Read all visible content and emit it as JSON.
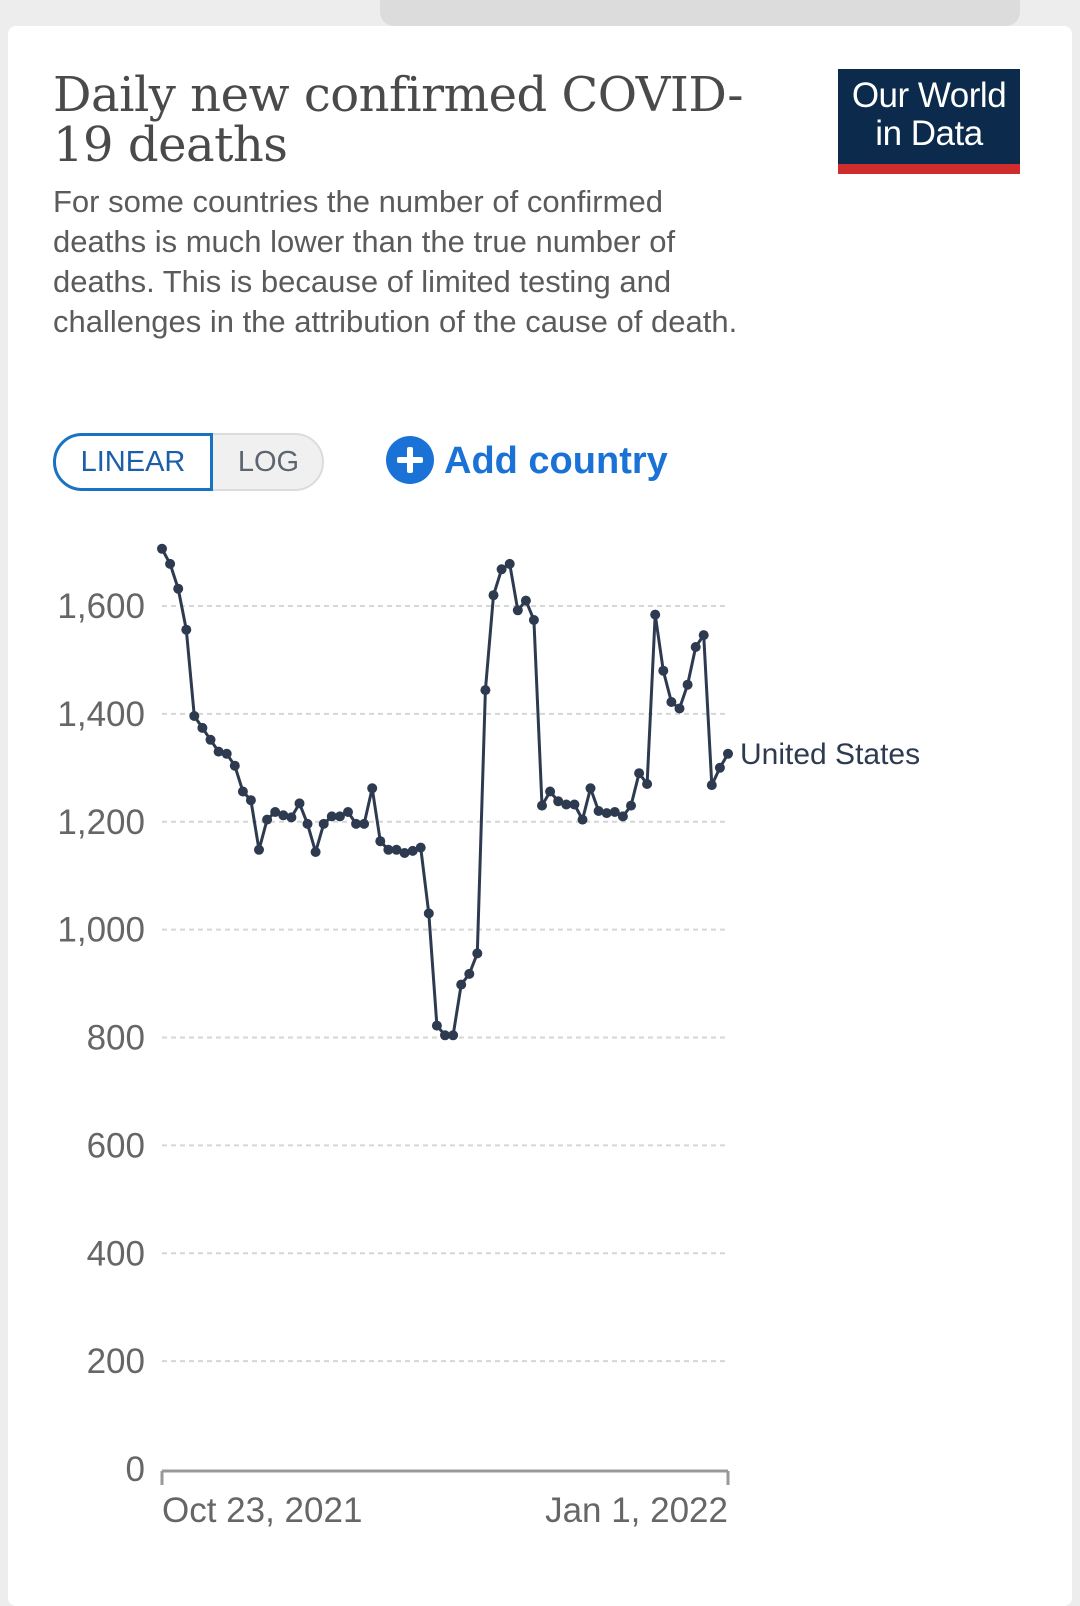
{
  "header": {
    "title": "Daily new confirmed COVID-19 deaths",
    "subtitle": "For some countries the number of confirmed deaths is much lower than the true number of deaths. This is because of limited testing and challenges in the attribution of the cause of death.",
    "logo_line1": "Our World",
    "logo_line2": "in Data"
  },
  "controls": {
    "scale_options": [
      "LINEAR",
      "LOG"
    ],
    "selected_scale": "LINEAR",
    "add_country_label": "Add country"
  },
  "colors": {
    "series": "#2d3a4f",
    "accent": "#1a72d6",
    "logo_bg": "#0b2a4c",
    "logo_bar": "#cf2d2d"
  },
  "chart_data": {
    "type": "line",
    "title": "Daily new confirmed COVID-19 deaths",
    "xlabel": "",
    "ylabel": "",
    "ylim": [
      0,
      1700
    ],
    "y_ticks": [
      "0",
      "200",
      "400",
      "600",
      "800",
      "1,000",
      "1,200",
      "1,400",
      "1,600"
    ],
    "y_tick_values": [
      0,
      200,
      400,
      600,
      800,
      1000,
      1200,
      1400,
      1600
    ],
    "x_ticks": [
      "Oct 23, 2021",
      "Jan 1, 2022"
    ],
    "x_tick_dates": [
      "2021-10-23",
      "2022-01-01"
    ],
    "grid": "horizontal dashed",
    "series": [
      {
        "name": "United States",
        "color": "#2d3a4f",
        "points": [
          [
            "2021-10-23",
            1706
          ],
          [
            "2021-10-24",
            1678
          ],
          [
            "2021-10-25",
            1632
          ],
          [
            "2021-10-26",
            1556
          ],
          [
            "2021-10-27",
            1396
          ],
          [
            "2021-10-28",
            1374
          ],
          [
            "2021-10-29",
            1352
          ],
          [
            "2021-10-30",
            1330
          ],
          [
            "2021-10-31",
            1326
          ],
          [
            "2021-11-01",
            1304
          ],
          [
            "2021-11-02",
            1256
          ],
          [
            "2021-11-03",
            1240
          ],
          [
            "2021-11-04",
            1148
          ],
          [
            "2021-11-05",
            1204
          ],
          [
            "2021-11-06",
            1218
          ],
          [
            "2021-11-07",
            1212
          ],
          [
            "2021-11-08",
            1208
          ],
          [
            "2021-11-09",
            1234
          ],
          [
            "2021-11-10",
            1196
          ],
          [
            "2021-11-11",
            1144
          ],
          [
            "2021-11-12",
            1196
          ],
          [
            "2021-11-13",
            1210
          ],
          [
            "2021-11-14",
            1210
          ],
          [
            "2021-11-15",
            1218
          ],
          [
            "2021-11-16",
            1196
          ],
          [
            "2021-11-17",
            1196
          ],
          [
            "2021-11-18",
            1262
          ],
          [
            "2021-11-19",
            1164
          ],
          [
            "2021-11-20",
            1148
          ],
          [
            "2021-11-21",
            1148
          ],
          [
            "2021-11-22",
            1142
          ],
          [
            "2021-11-23",
            1146
          ],
          [
            "2021-11-24",
            1152
          ],
          [
            "2021-11-25",
            1030
          ],
          [
            "2021-11-26",
            822
          ],
          [
            "2021-11-27",
            804
          ],
          [
            "2021-11-28",
            804
          ],
          [
            "2021-11-29",
            898
          ],
          [
            "2021-11-30",
            918
          ],
          [
            "2021-12-01",
            956
          ],
          [
            "2021-12-02",
            1444
          ],
          [
            "2021-12-03",
            1620
          ],
          [
            "2021-12-04",
            1668
          ],
          [
            "2021-12-05",
            1678
          ],
          [
            "2021-12-06",
            1592
          ],
          [
            "2021-12-07",
            1610
          ],
          [
            "2021-12-08",
            1574
          ],
          [
            "2021-12-09",
            1230
          ],
          [
            "2021-12-10",
            1256
          ],
          [
            "2021-12-11",
            1238
          ],
          [
            "2021-12-12",
            1232
          ],
          [
            "2021-12-13",
            1232
          ],
          [
            "2021-12-14",
            1204
          ],
          [
            "2021-12-15",
            1262
          ],
          [
            "2021-12-16",
            1220
          ],
          [
            "2021-12-17",
            1216
          ],
          [
            "2021-12-18",
            1218
          ],
          [
            "2021-12-19",
            1210
          ],
          [
            "2021-12-20",
            1230
          ],
          [
            "2021-12-21",
            1290
          ],
          [
            "2021-12-22",
            1270
          ],
          [
            "2021-12-23",
            1584
          ],
          [
            "2021-12-24",
            1480
          ],
          [
            "2021-12-25",
            1422
          ],
          [
            "2021-12-26",
            1410
          ],
          [
            "2021-12-27",
            1454
          ],
          [
            "2021-12-28",
            1524
          ],
          [
            "2021-12-29",
            1546
          ],
          [
            "2021-12-30",
            1268
          ],
          [
            "2021-12-31",
            1300
          ],
          [
            "2022-01-01",
            1326
          ]
        ]
      }
    ]
  }
}
